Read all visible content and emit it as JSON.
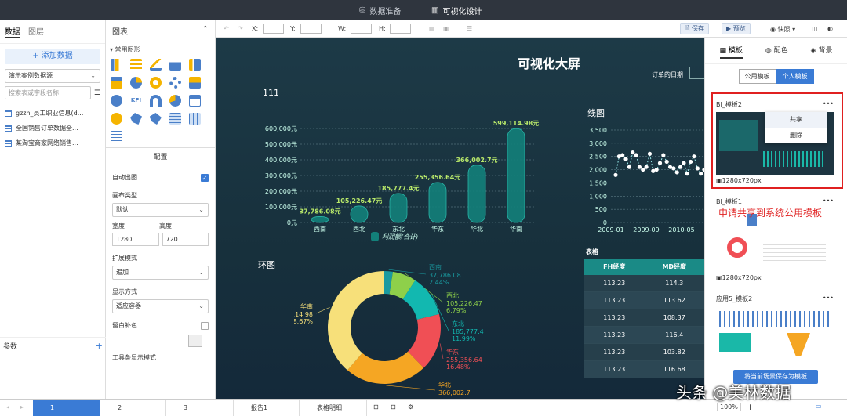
{
  "topbar": {
    "tab_data": "数据准备",
    "tab_visual": "可视化设计"
  },
  "left_panel": {
    "tab_data": "数据",
    "tab_layers": "图层",
    "add_data": "+ 添加数据",
    "datasource": "演示案例数据源",
    "search_placeholder": "搜索表或字段名称",
    "datasets": [
      "gzzh_员工职业信息(d...",
      "全国销售订单数据全...",
      "某淘宝商家网络销售..."
    ],
    "params_label": "参数"
  },
  "chart_panel": {
    "title": "图表",
    "common": "▾ 常用图形",
    "config_title": "配置",
    "auto_chart": "自动出图",
    "canvas_type": "画布类型",
    "canvas_type_val": "默认",
    "width_label": "宽度",
    "height_label": "高度",
    "width_val": "1280",
    "height_val": "720",
    "expand_mode": "扩展模式",
    "expand_val": "追加",
    "display_mode": "显示方式",
    "display_val": "适应容器",
    "bg_fill": "留白补色",
    "toolbar_mode": "工具条显示模式"
  },
  "toolbar": {
    "x": "X:",
    "y": "Y:",
    "w": "W:",
    "h": "H:",
    "save": "保存",
    "preview": "预览",
    "snapshot": "快照"
  },
  "canvas": {
    "title": "可视化大屏",
    "date_label": "订单的日期",
    "bar_title": "111",
    "line_title": "线图",
    "table_title": "表格",
    "donut_title": "环图"
  },
  "right_panel": {
    "tab_template": "模板",
    "tab_color": "配色",
    "tab_bg": "背景",
    "seg_public": "公用模板",
    "seg_personal": "个人模板",
    "card1_name": "BI_模板2",
    "card1_dim": "1280x720px",
    "card2_name": "BI_模板1",
    "card2_dim": "1280x720px",
    "card3_name": "应用5_模板2",
    "menu_share": "共享",
    "menu_delete": "删除",
    "more": "•••",
    "save_btn": "将当前场景保存为模板"
  },
  "annotation": "申请共享到系统公用模板",
  "watermark": "头条 @美林数据",
  "bottombar": {
    "pages": [
      "1",
      "2",
      "3",
      "报告1",
      "表格明细"
    ],
    "zoom": "100%"
  },
  "colors": {
    "teal": "#1a8a86",
    "accent": "#3a7bd5",
    "red": "#e02020"
  },
  "chart_data": [
    {
      "type": "bar",
      "title": "111",
      "categories": [
        "西南",
        "西北",
        "东北",
        "华东",
        "华北",
        "华南"
      ],
      "values": [
        37786.08,
        105226.47,
        185777.4,
        255356.64,
        366002.7,
        599114.98
      ],
      "labels": [
        "37,786.08元",
        "105,226.47元",
        "185,777.4元",
        "255,356.64元",
        "366,002.7元",
        "599,114.98元"
      ],
      "yticks": [
        "0元",
        "100,000元",
        "200,000元",
        "300,000元",
        "400,000元",
        "500,000元",
        "600,000元"
      ],
      "ylim": [
        0,
        600000
      ],
      "legend": "利润额(合计)"
    },
    {
      "type": "line",
      "title": "线图",
      "yticks": [
        "0",
        "500",
        "1,000",
        "1,500",
        "2,000",
        "2,500",
        "3,000",
        "3,500"
      ],
      "xticks": [
        "2009-01",
        "2009-09",
        "2010-05"
      ],
      "ylim": [
        0,
        3500
      ],
      "values": [
        1800,
        2500,
        2550,
        2400,
        2100,
        2650,
        2550,
        2100,
        2000,
        2100,
        2600,
        1950,
        2000,
        2250,
        2550,
        2300,
        2100,
        2050,
        1900,
        2100,
        2250,
        1850,
        2300,
        2500,
        2050,
        1850,
        2000
      ]
    },
    {
      "type": "table",
      "title": "表格",
      "columns": [
        "FH经度",
        "MD经度"
      ],
      "rows": [
        [
          "113.23",
          "114.3"
        ],
        [
          "113.23",
          "113.62"
        ],
        [
          "113.23",
          "108.37"
        ],
        [
          "113.23",
          "116.4"
        ],
        [
          "113.23",
          "103.82"
        ],
        [
          "113.23",
          "116.68"
        ]
      ]
    },
    {
      "type": "pie",
      "title": "环图",
      "slices": [
        {
          "name": "西南",
          "value": "37,786.08",
          "pct": "2.44%",
          "color": "#1a9aa0"
        },
        {
          "name": "西北",
          "value": "105,226.47",
          "pct": "6.79%",
          "color": "#8ed04a"
        },
        {
          "name": "东北",
          "value": "185,777.4",
          "pct": "11.99%",
          "color": "#12b8b0"
        },
        {
          "name": "华东",
          "value": "255,356.64",
          "pct": "16.48%",
          "color": "#f04f55"
        },
        {
          "name": "华北",
          "value": "366,002.7",
          "pct": "23.62%",
          "color": "#f5a623"
        },
        {
          "name": "华南",
          "value": "599,114.98",
          "pct": "38.67%",
          "color": "#f7e07a"
        }
      ],
      "fractions": [
        0.0244,
        0.0679,
        0.1199,
        0.1648,
        0.2362,
        0.3867
      ],
      "partial_label": "366,002.7"
    }
  ]
}
